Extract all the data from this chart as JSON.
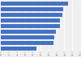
{
  "values": [
    17.01,
    15.8,
    15.42,
    14.96,
    14.8,
    13.85,
    13.42,
    13.2,
    8.95
  ],
  "bar_color": "#4472c4",
  "background_color": "#f0f0f0",
  "xlim": [
    0,
    20
  ],
  "figsize": [
    1.0,
    0.71
  ],
  "dpi": 100
}
